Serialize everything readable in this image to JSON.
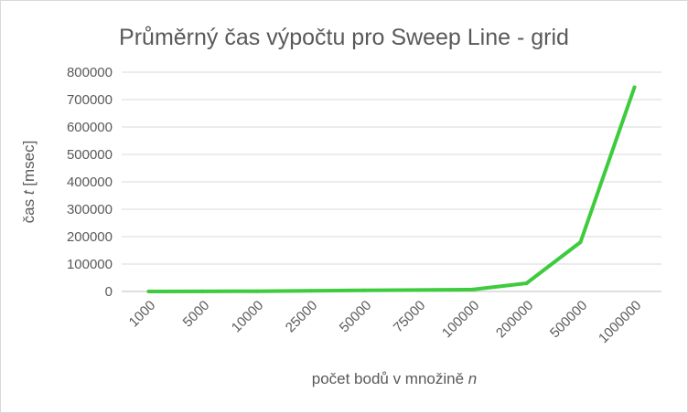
{
  "chart_data": {
    "type": "line",
    "title": "Průměrný čas výpočtu pro Sweep Line - grid",
    "xlabel": {
      "prefix": "počet bodů v množině ",
      "var": "n",
      "suffix": ""
    },
    "ylabel": {
      "prefix": "čas ",
      "var": "t",
      "suffix": " [msec]"
    },
    "categories": [
      "1000",
      "5000",
      "10000",
      "25000",
      "50000",
      "75000",
      "100000",
      "200000",
      "500000",
      "1000000"
    ],
    "series": [
      {
        "values": [
          200,
          600,
          1000,
          2500,
          4000,
          5500,
          7000,
          30000,
          180000,
          745000
        ],
        "color": "#3ecb3e"
      }
    ],
    "ylim": [
      0,
      800000
    ],
    "yticks": [
      0,
      100000,
      200000,
      300000,
      400000,
      500000,
      600000,
      700000,
      800000
    ],
    "grid": true,
    "legend": "none"
  }
}
